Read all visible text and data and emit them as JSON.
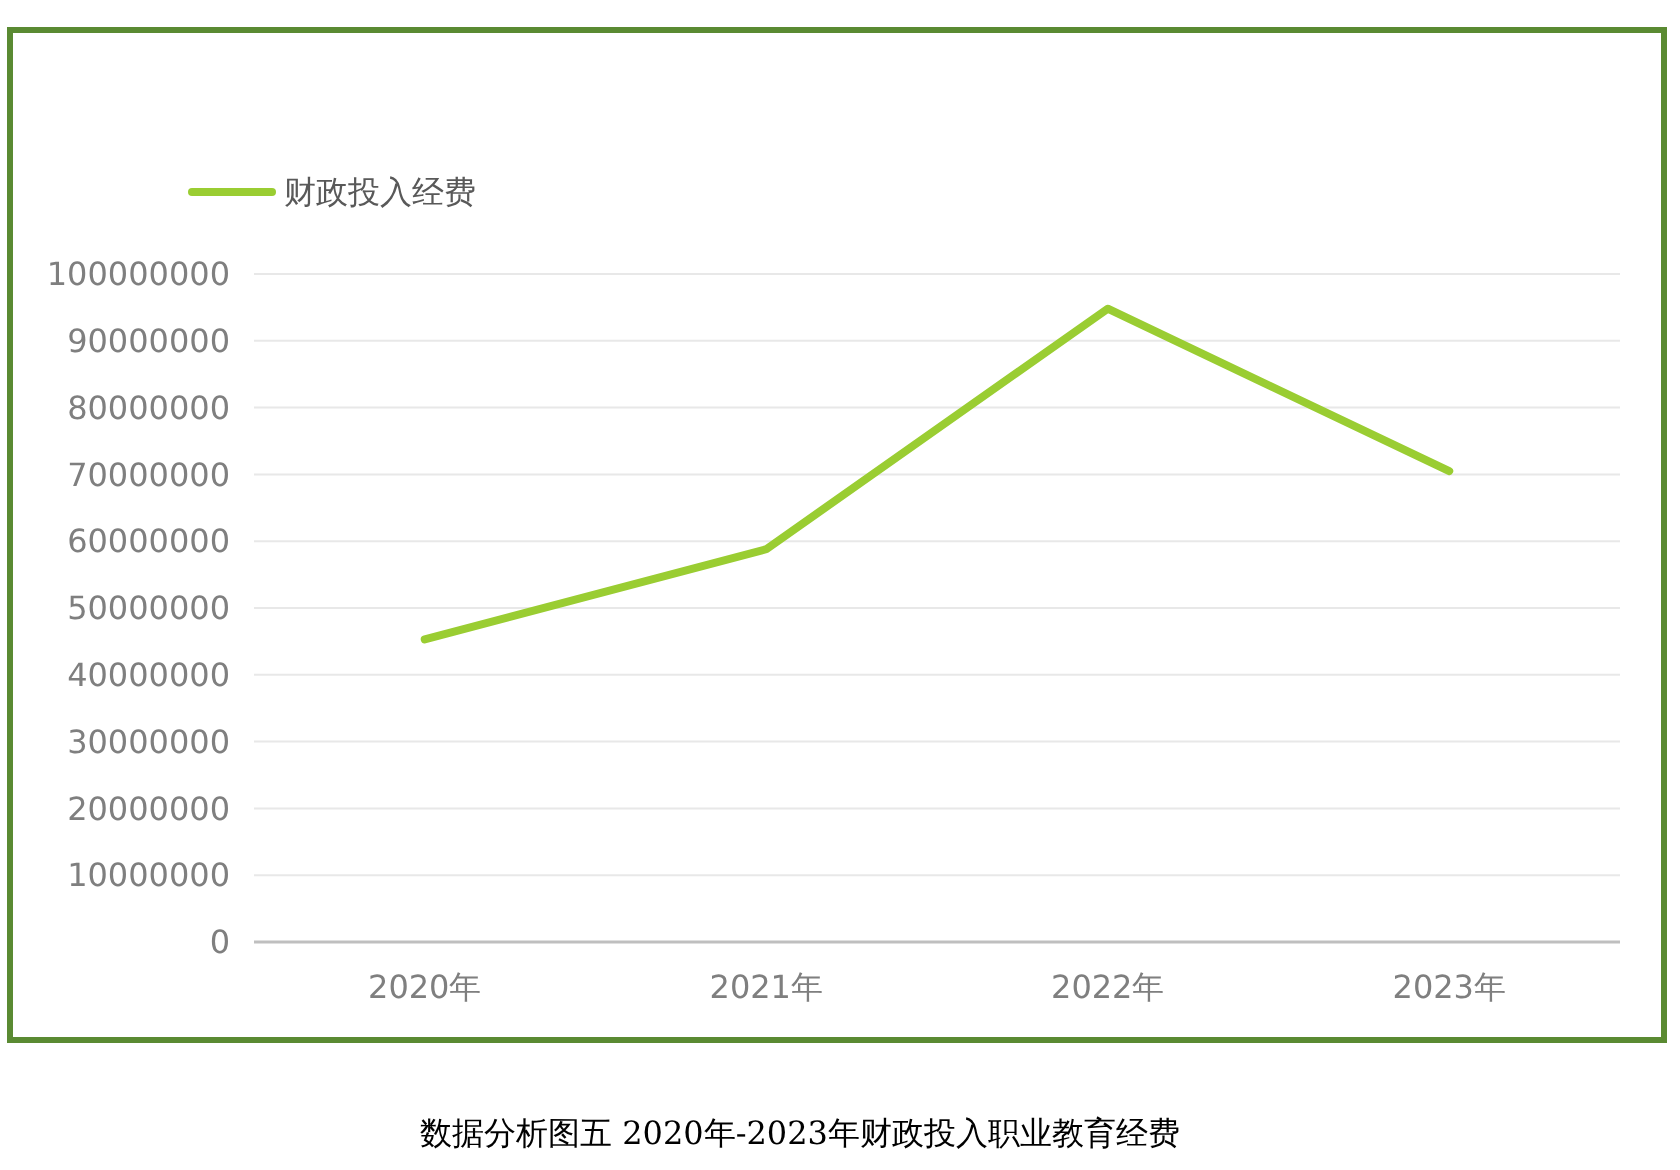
{
  "chart_data": {
    "type": "line",
    "categories": [
      "2020年",
      "2021年",
      "2022年",
      "2023年"
    ],
    "series": [
      {
        "name": "财政投入经费",
        "color": "#9acd32",
        "values": [
          45300000,
          58800000,
          94800000,
          70500000
        ]
      }
    ],
    "ylim": [
      0,
      100000000
    ],
    "yticks": [
      0,
      10000000,
      20000000,
      30000000,
      40000000,
      50000000,
      60000000,
      70000000,
      80000000,
      90000000,
      100000000
    ],
    "grid": "y",
    "legend": "top left",
    "marker": "none",
    "line_style": "solid",
    "annotations": [
      "数据分析图五 2020年-2023年财政投入职业教育经费"
    ]
  }
}
